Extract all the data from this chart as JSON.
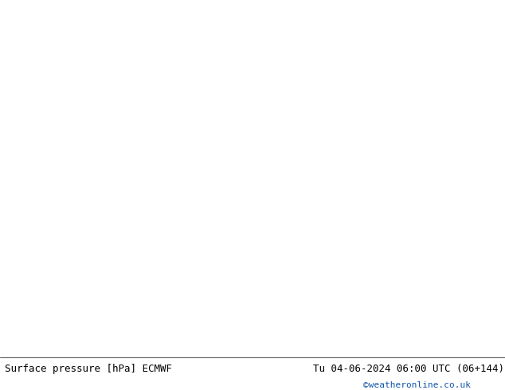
{
  "title_left": "Surface pressure [hPa] ECMWF",
  "title_right": "Tu 04-06-2024 06:00 UTC (06+144)",
  "watermark": "©weatheronline.co.uk",
  "bg_color_ocean": "#d4dce8",
  "bg_color_land": "#c8dfa0",
  "bg_color_land_dark": "#b8cf90",
  "coast_color": "#555555",
  "border_color": "#888888",
  "text_color_black": "#000000",
  "text_color_blue": "#0000cc",
  "text_color_red": "#cc0000",
  "text_color_watermark": "#1155aa",
  "bottom_bar_color": "#ffffff",
  "font_size_title": 9,
  "font_size_watermark": 8,
  "font_size_label": 7,
  "lon_min": -20,
  "lon_max": 55,
  "lat_min": -38,
  "lat_max": 40,
  "fig_width": 6.34,
  "fig_height": 4.9,
  "dpi": 100
}
